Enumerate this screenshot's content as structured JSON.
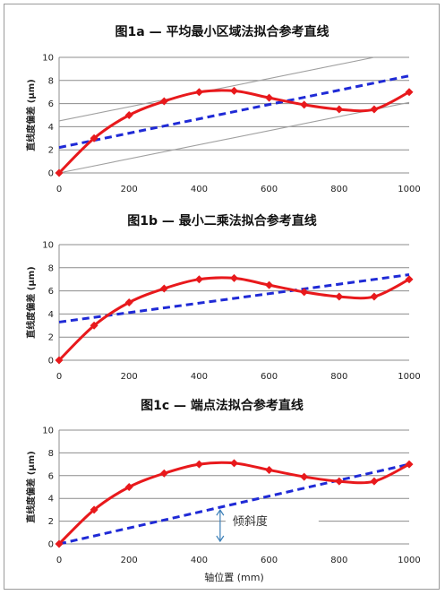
{
  "chart_data": [
    {
      "type": "line",
      "title": "图1a — 平均最小区域法拟合参考直线",
      "ylabel": "直线度偏差 (μm)",
      "xlabel": "",
      "xlim": [
        0,
        1000
      ],
      "ylim": [
        0,
        10
      ],
      "x_ticks": [
        "0",
        "200",
        "400",
        "600",
        "800",
        "1000"
      ],
      "y_ticks": [
        "0",
        "2",
        "4",
        "6",
        "8",
        "10"
      ],
      "grid": true,
      "series": [
        {
          "x": [
            0,
            100,
            200,
            300,
            400,
            500,
            600,
            700,
            800,
            900,
            1000
          ],
          "values": [
            0,
            3.0,
            5.0,
            6.2,
            7.0,
            7.1,
            6.5,
            5.9,
            5.5,
            5.5,
            7.0
          ],
          "color": "#e8191c",
          "style": "solid-markers"
        },
        {
          "x": [
            0,
            1000
          ],
          "values": [
            2.2,
            8.4
          ],
          "color": "#1f2ad6",
          "style": "dashed"
        },
        {
          "x": [
            0,
            900
          ],
          "values": [
            4.5,
            10.0
          ],
          "color": "#a0a0a0",
          "style": "thin"
        },
        {
          "x": [
            0,
            1000
          ],
          "values": [
            0,
            6.1
          ],
          "color": "#a0a0a0",
          "style": "thin"
        }
      ]
    },
    {
      "type": "line",
      "title": "图1b — 最小二乘法拟合参考直线",
      "ylabel": "直线度偏差 (μm)",
      "xlabel": "",
      "xlim": [
        0,
        1000
      ],
      "ylim": [
        0,
        10
      ],
      "x_ticks": [
        "0",
        "200",
        "400",
        "600",
        "800",
        "1000"
      ],
      "y_ticks": [
        "0",
        "2",
        "4",
        "6",
        "8",
        "10"
      ],
      "grid": true,
      "series": [
        {
          "x": [
            0,
            100,
            200,
            300,
            400,
            500,
            600,
            700,
            800,
            900,
            1000
          ],
          "values": [
            0,
            3.0,
            5.0,
            6.2,
            7.0,
            7.1,
            6.5,
            5.9,
            5.5,
            5.5,
            7.0
          ],
          "color": "#e8191c",
          "style": "solid-markers"
        },
        {
          "x": [
            0,
            1000
          ],
          "values": [
            3.3,
            7.4
          ],
          "color": "#1f2ad6",
          "style": "dashed"
        }
      ]
    },
    {
      "type": "line",
      "title": "图1c — 端点法拟合参考直线",
      "ylabel": "直线度偏差 (μm)",
      "xlabel": "轴位置 (mm)",
      "xlim": [
        0,
        1000
      ],
      "ylim": [
        0,
        10
      ],
      "x_ticks": [
        "0",
        "200",
        "400",
        "600",
        "800",
        "1000"
      ],
      "y_ticks": [
        "0",
        "2",
        "4",
        "6",
        "8",
        "10"
      ],
      "grid": true,
      "annotation": {
        "text": "倾斜度",
        "x": 460
      },
      "series": [
        {
          "x": [
            0,
            100,
            200,
            300,
            400,
            500,
            600,
            700,
            800,
            900,
            1000
          ],
          "values": [
            0,
            3.0,
            5.0,
            6.2,
            7.0,
            7.1,
            6.5,
            5.9,
            5.5,
            5.5,
            7.0
          ],
          "color": "#e8191c",
          "style": "solid-markers"
        },
        {
          "x": [
            0,
            1000
          ],
          "values": [
            0,
            7.0
          ],
          "color": "#1f2ad6",
          "style": "dashed"
        }
      ]
    }
  ]
}
